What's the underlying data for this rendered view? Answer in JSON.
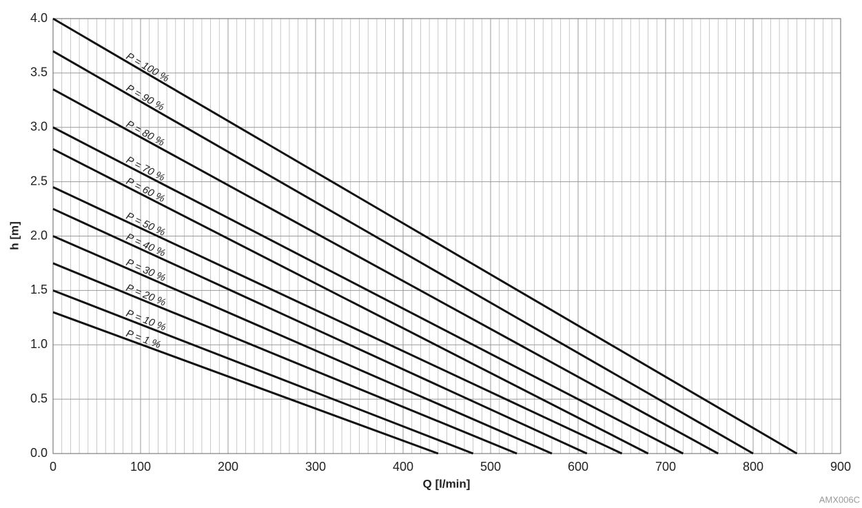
{
  "chart_data": {
    "type": "line",
    "xlabel": "Q [l/min]",
    "ylabel": "h [m]",
    "watermark": "AMX006C",
    "xlim": [
      0,
      900
    ],
    "xticks": [
      0,
      100,
      200,
      300,
      400,
      500,
      600,
      700,
      800,
      900
    ],
    "ylim": [
      0,
      4
    ],
    "yticks": [
      {
        "value": 0,
        "label": "0.0"
      },
      0.5,
      {
        "value": 1,
        "label": "1.0"
      },
      1.5,
      {
        "value": 2,
        "label": "2.0"
      },
      2.5,
      {
        "value": 3,
        "label": "3.0"
      },
      3.5,
      {
        "value": 4,
        "label": "4.0"
      }
    ],
    "grid": true,
    "minor_grid": true,
    "color": "#111111",
    "series": [
      {
        "name": "P = 100 %",
        "x": [
          0,
          850
        ],
        "values": [
          4.0,
          0
        ]
      },
      {
        "name": "P = 90 %",
        "x": [
          0,
          800
        ],
        "values": [
          3.7,
          0
        ]
      },
      {
        "name": "P = 80 %",
        "x": [
          0,
          760
        ],
        "values": [
          3.35,
          0
        ]
      },
      {
        "name": "P = 70 %",
        "x": [
          0,
          720
        ],
        "values": [
          3.0,
          0
        ]
      },
      {
        "name": "P = 60 %",
        "x": [
          0,
          680
        ],
        "values": [
          2.8,
          0
        ]
      },
      {
        "name": "P = 50 %",
        "x": [
          0,
          650
        ],
        "values": [
          2.45,
          0
        ]
      },
      {
        "name": "P = 40 %",
        "x": [
          0,
          610
        ],
        "values": [
          2.25,
          0
        ]
      },
      {
        "name": "P = 30 %",
        "x": [
          0,
          570
        ],
        "values": [
          2.0,
          0
        ]
      },
      {
        "name": "P = 20 %",
        "x": [
          0,
          530
        ],
        "values": [
          1.75,
          0
        ]
      },
      {
        "name": "P = 10 %",
        "x": [
          0,
          480
        ],
        "values": [
          1.5,
          0
        ]
      },
      {
        "name": "P = 1 %",
        "x": [
          0,
          440
        ],
        "values": [
          1.3,
          0
        ]
      }
    ]
  }
}
